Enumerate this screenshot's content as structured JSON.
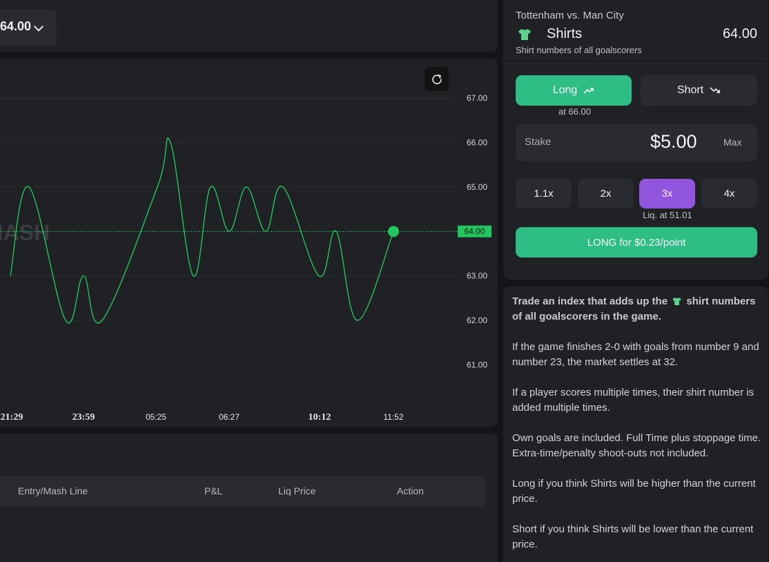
{
  "header": {
    "price_selector_value": "64.00"
  },
  "chart_data": {
    "type": "line",
    "current_price_label": "64.00",
    "watermark": "MASH",
    "y_ticks": [
      "67.00",
      "66.00",
      "65.00",
      "64.00",
      "63.00",
      "62.00",
      "61.00"
    ],
    "x_ticks": [
      {
        "label": "21:29",
        "bold": true
      },
      {
        "label": "23:59",
        "bold": true
      },
      {
        "label": "05:25",
        "bold": false
      },
      {
        "label": "06:27",
        "bold": false
      },
      {
        "label": "10:12",
        "bold": true
      },
      {
        "label": "11:52",
        "bold": false
      }
    ],
    "ylim": [
      60.5,
      67.5
    ],
    "series": [
      {
        "color": "#22c55e",
        "values": [
          63.0,
          65.0,
          62.0,
          63.0,
          62.0,
          65.0,
          66.0,
          63.0,
          65.0,
          64.0,
          65.0,
          64.0,
          65.0,
          63.0,
          64.0,
          62.0,
          64.0
        ]
      }
    ]
  },
  "positions": {
    "columns": [
      "Entry/Mash Line",
      "P&L",
      "Liq Price",
      "Action"
    ]
  },
  "trade": {
    "match": "Tottenham vs. Man City",
    "market_name": "Shirts",
    "market_price": "64.00",
    "market_desc": "Shirt numbers of all goalscorers",
    "long_label": "Long",
    "short_label": "Short",
    "long_at": "at 66.00",
    "stake_label": "Stake",
    "stake_value": "$5.00",
    "max_label": "Max",
    "leverage": [
      "1.1x",
      "2x",
      "3x",
      "4x"
    ],
    "liq_label": "Liq. at 51.01",
    "submit_label": "LONG for $0.23/point",
    "colors": {
      "long": "#2ebd85",
      "selected_leverage": "#9256de",
      "shirt": "#5fd38d"
    }
  },
  "info": {
    "intro_a": "Trade an index that adds up the",
    "intro_b": "shirt numbers of all goalscorers in the game.",
    "p1": "If the game finishes 2-0 with goals from number 9 and number 23, the market settles at 32.",
    "p2": "If a player scores multiple times, their shirt number is added multiple times.",
    "p3": "Own goals are included. Full Time plus stoppage time. Extra-time/penalty shoot-outs not included.",
    "p4": "Long if you think Shirts will be higher than the current price.",
    "p5": "Short if you think Shirts will be lower than the current price."
  }
}
